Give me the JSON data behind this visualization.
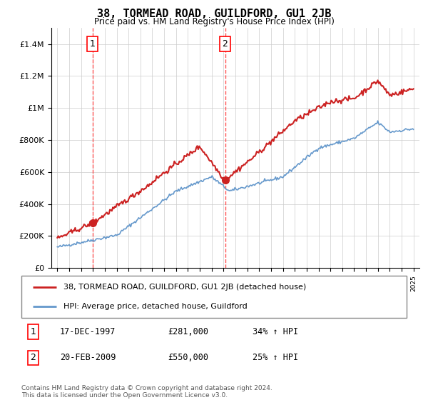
{
  "title": "38, TORMEAD ROAD, GUILDFORD, GU1 2JB",
  "subtitle": "Price paid vs. HM Land Registry's House Price Index (HPI)",
  "legend_line1": "38, TORMEAD ROAD, GUILDFORD, GU1 2JB (detached house)",
  "legend_line2": "HPI: Average price, detached house, Guildford",
  "transaction1_date": "17-DEC-1997",
  "transaction1_price": "£281,000",
  "transaction1_hpi": "34% ↑ HPI",
  "transaction1_label": "1",
  "transaction1_year": 1997.96,
  "transaction1_value": 281000,
  "transaction2_date": "20-FEB-2009",
  "transaction2_price": "£550,000",
  "transaction2_hpi": "25% ↑ HPI",
  "transaction2_label": "2",
  "transaction2_year": 2009.13,
  "transaction2_value": 550000,
  "footer": "Contains HM Land Registry data © Crown copyright and database right 2024.\nThis data is licensed under the Open Government Licence v3.0.",
  "hpi_color": "#6699cc",
  "price_color": "#cc2222",
  "dashed_color": "#ff4444",
  "background_color": "#ffffff",
  "grid_color": "#cccccc",
  "ylim_min": 0,
  "ylim_max": 1500000,
  "xlim_min": 1994.5,
  "xlim_max": 2025.5
}
